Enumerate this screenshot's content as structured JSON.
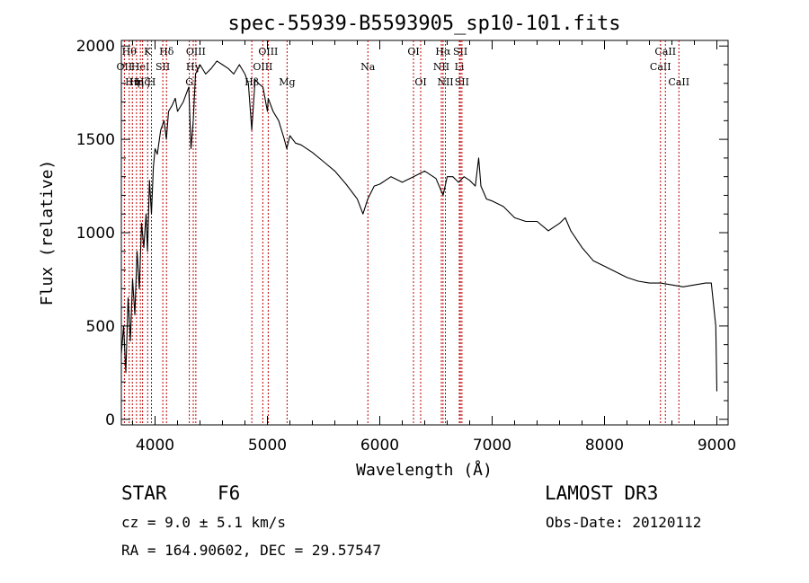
{
  "chart_data": {
    "type": "line",
    "title": "spec-55939-B5593905_sp10-101.fits",
    "xlabel": "Wavelength (Å)",
    "ylabel": "Flux (relative)",
    "xlim": [
      3700,
      9100
    ],
    "ylim": [
      -30,
      2030
    ],
    "xticks": [
      4000,
      5000,
      6000,
      7000,
      8000,
      9000
    ],
    "yticks": [
      0,
      500,
      1000,
      1500,
      2000
    ],
    "line_color": "#000000",
    "marker_color": "#c00000",
    "series": [
      {
        "name": "spectrum",
        "x": [
          3700,
          3720,
          3740,
          3760,
          3780,
          3800,
          3820,
          3840,
          3860,
          3880,
          3900,
          3920,
          3933,
          3950,
          3968,
          3985,
          4000,
          4020,
          4050,
          4080,
          4101,
          4120,
          4150,
          4180,
          4200,
          4250,
          4300,
          4320,
          4340,
          4360,
          4400,
          4450,
          4500,
          4550,
          4600,
          4650,
          4700,
          4750,
          4800,
          4830,
          4861,
          4890,
          4920,
          4960,
          5000,
          5007,
          5050,
          5100,
          5150,
          5172,
          5200,
          5250,
          5300,
          5400,
          5500,
          5600,
          5700,
          5800,
          5850,
          5893,
          5950,
          6000,
          6100,
          6200,
          6300,
          6400,
          6500,
          6563,
          6600,
          6650,
          6700,
          6750,
          6800,
          6850,
          6880,
          6900,
          6950,
          7000,
          7100,
          7200,
          7300,
          7400,
          7500,
          7600,
          7650,
          7700,
          7800,
          7900,
          8000,
          8100,
          8200,
          8300,
          8400,
          8500,
          8600,
          8700,
          8800,
          8900,
          8950,
          8990,
          9000
        ],
        "y": [
          350,
          500,
          250,
          650,
          420,
          750,
          560,
          900,
          700,
          1050,
          920,
          1100,
          900,
          1280,
          1100,
          1350,
          1450,
          1420,
          1550,
          1600,
          1500,
          1650,
          1680,
          1720,
          1650,
          1700,
          1780,
          1450,
          1600,
          1850,
          1900,
          1850,
          1880,
          1920,
          1900,
          1880,
          1850,
          1900,
          1850,
          1800,
          1550,
          1820,
          1800,
          1780,
          1650,
          1720,
          1650,
          1600,
          1500,
          1450,
          1520,
          1480,
          1470,
          1430,
          1380,
          1330,
          1260,
          1180,
          1100,
          1180,
          1250,
          1260,
          1300,
          1270,
          1300,
          1330,
          1290,
          1200,
          1300,
          1300,
          1270,
          1300,
          1280,
          1250,
          1400,
          1250,
          1180,
          1170,
          1140,
          1080,
          1060,
          1060,
          1010,
          1050,
          1080,
          1010,
          920,
          850,
          820,
          790,
          760,
          740,
          730,
          730,
          720,
          710,
          720,
          730,
          730,
          500,
          150
        ]
      }
    ],
    "lines": [
      {
        "x": 3727,
        "label": "OII",
        "row": 2
      },
      {
        "x": 3770,
        "label": "Hθ",
        "row": 1
      },
      {
        "x": 3798,
        "label": "Hη",
        "row": 3
      },
      {
        "x": 3835,
        "label": "Hη",
        "row": 3
      },
      {
        "x": 3869,
        "label": "HeI",
        "row": 2
      },
      {
        "x": 3889,
        "label": "Hζ",
        "row": 3
      },
      {
        "x": 3934,
        "label": "K",
        "row": 1
      },
      {
        "x": 3968,
        "label": "H",
        "row": 3
      },
      {
        "x": 4069,
        "label": "SII",
        "row": 2
      },
      {
        "x": 4102,
        "label": "Hδ",
        "row": 1
      },
      {
        "x": 4340,
        "label": "Hγ",
        "row": 2
      },
      {
        "x": 4363,
        "label": "OIII",
        "row": 1
      },
      {
        "x": 4305,
        "label": "G",
        "row": 3
      },
      {
        "x": 4861,
        "label": "Hβ",
        "row": 3
      },
      {
        "x": 4959,
        "label": "OIII",
        "row": 2
      },
      {
        "x": 5007,
        "label": "OIII",
        "row": 1
      },
      {
        "x": 5175,
        "label": "Mg",
        "row": 3
      },
      {
        "x": 5894,
        "label": "Na",
        "row": 2
      },
      {
        "x": 6300,
        "label": "OI",
        "row": 1
      },
      {
        "x": 6364,
        "label": "OI",
        "row": 3
      },
      {
        "x": 6548,
        "label": "NII",
        "row": 2
      },
      {
        "x": 6563,
        "label": "Hα",
        "row": 1
      },
      {
        "x": 6584,
        "label": "NII",
        "row": 3
      },
      {
        "x": 6708,
        "label": "Li",
        "row": 2
      },
      {
        "x": 6717,
        "label": "SII",
        "row": 1
      },
      {
        "x": 6731,
        "label": "SII",
        "row": 3
      },
      {
        "x": 8498,
        "label": "CaII",
        "row": 2
      },
      {
        "x": 8542,
        "label": "CaII",
        "row": 1
      },
      {
        "x": 8662,
        "label": "CaII",
        "row": 3
      }
    ]
  },
  "info": {
    "class": "STAR",
    "subclass": "F6",
    "survey": "LAMOST DR3",
    "cz": "cz = 9.0 ± 5.1 km/s",
    "obs_date": "Obs-Date: 20120112",
    "radec": "RA = 164.90602, DEC =  29.57547"
  }
}
